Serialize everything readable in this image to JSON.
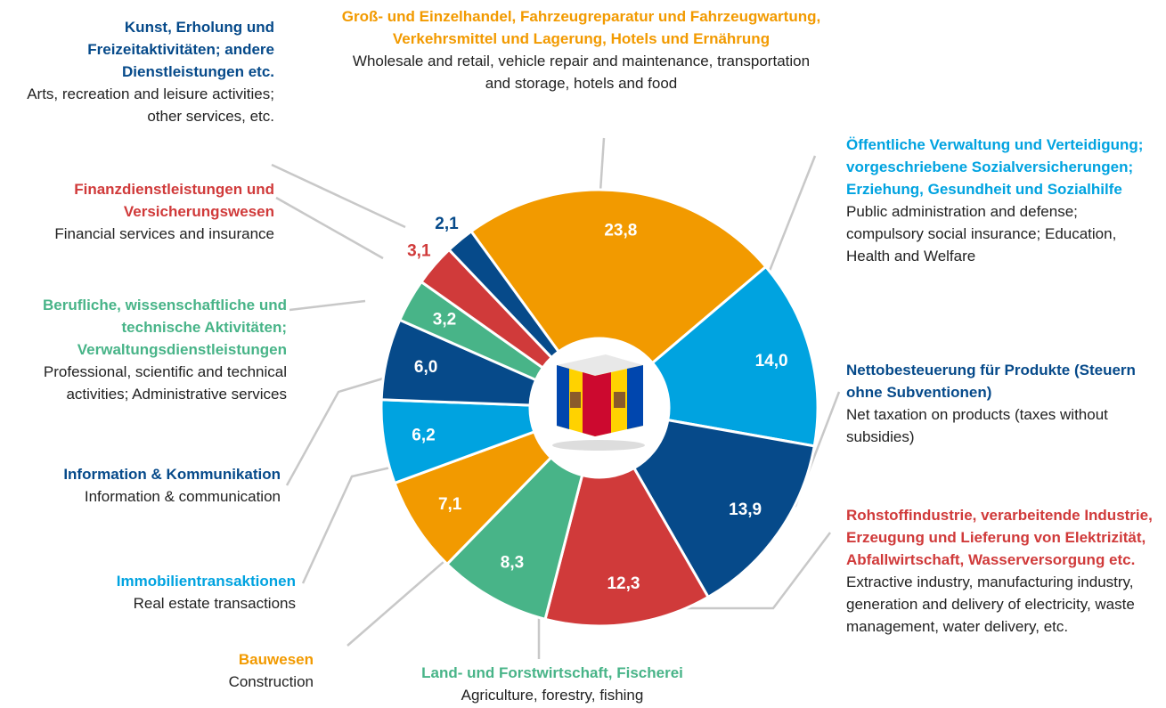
{
  "chart_data": {
    "type": "donut",
    "categories": [
      "Groß- und Einzelhandel, Fahrzeugreparatur und Fahrzeugwartung, Verkehrsmittel und Lagerung, Hotels und Ernährung",
      "Öffentliche Verwaltung und Verteidigung; vorgeschriebene Sozialversicherungen; Erziehung, Gesundheit und Sozialhilfe",
      "Nettobesteuerung für Produkte (Steuern ohne Subventionen)",
      "Rohstoffindustrie, verarbeitende Industrie, Erzeugung und Lieferung von Elektrizität, Abfallwirtschaft, Wasserversorgung etc.",
      "Land- und Forstwirtschaft, Fischerei",
      "Bauwesen",
      "Immobilientransaktionen",
      "Information & Kommunikation",
      "Berufliche, wissenschaftliche und technische Aktivitäten; Verwaltungsdienstleistungen",
      "Finanzdienstleistungen und Versicherungswesen",
      "Kunst, Erholung und Freizeitaktivitäten; andere Dienstleistungen etc."
    ],
    "categories_en": [
      "Wholesale and retail, vehicle repair and maintenance, transportation and storage, hotels and food",
      "Public administration and defense; compulsory social insurance; Education, Health and Welfare",
      "Net taxation on products (taxes without subsidies)",
      "Extractive industry, manufacturing industry, generation and delivery of electricity, waste management, water delivery, etc.",
      "Agriculture, forestry, fishing",
      "Construction",
      "Real estate transactions",
      "Information & communication",
      "Professional, scientific and technical activities; Administrative services",
      "Financial services and insurance",
      "Arts, recreation and leisure activities; other services, etc."
    ],
    "values": [
      23.8,
      14.0,
      13.9,
      12.3,
      8.3,
      7.1,
      6.2,
      6.0,
      3.2,
      3.1,
      2.1
    ],
    "value_labels": [
      "23,8",
      "14,0",
      "13,9",
      "12,3",
      "8,3",
      "7,1",
      "6,2",
      "6,0",
      "3,2",
      "3,1",
      "2,1"
    ],
    "colors": [
      "#f29a00",
      "#00a3e0",
      "#064a8a",
      "#d03a3a",
      "#48b488",
      "#f29a00",
      "#00a3e0",
      "#064a8a",
      "#48b488",
      "#d03a3a",
      "#064a8a"
    ]
  }
}
